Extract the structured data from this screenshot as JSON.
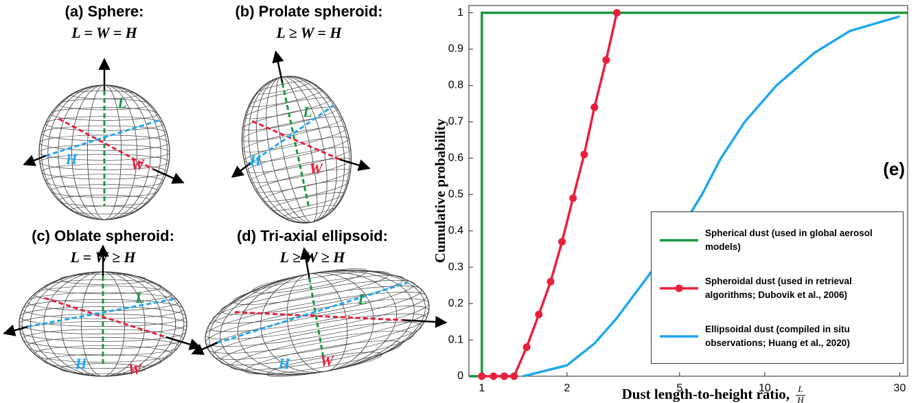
{
  "diagrams": [
    {
      "title": "(a) Sphere:",
      "formula": "L = W = H",
      "axes": [
        "L",
        "W",
        "H"
      ]
    },
    {
      "title": "(b) Prolate spheroid:",
      "formula": "L ≥ W = H",
      "axes": [
        "L",
        "W",
        "H"
      ]
    },
    {
      "title": "(c) Oblate spheroid:",
      "formula": "L = W ≥ H",
      "axes": [
        "L",
        "W",
        "H"
      ]
    },
    {
      "title": "(d) Tri-axial ellipsoid:",
      "formula": "L ≥ W ≥ H",
      "axes": [
        "L",
        "W",
        "H"
      ]
    }
  ],
  "chart_data": {
    "type": "line",
    "panel_label": "(e)",
    "x_label": "Dust length-to-height ratio,",
    "x_label_fraction": {
      "numerator": "L",
      "denominator": "H"
    },
    "y_label": "Cumulative probability",
    "x_scale": "log",
    "xlim": [
      0.9,
      32
    ],
    "xticks": [
      1,
      2,
      5,
      10,
      30
    ],
    "ylim": [
      0,
      1.02
    ],
    "yticks": [
      0,
      0.1,
      0.2,
      0.3,
      0.4,
      0.5,
      0.6,
      0.7,
      0.8,
      0.9,
      1
    ],
    "grid": false,
    "legend": "lower right",
    "series": [
      {
        "name": "Spherical dust (used in global aerosol models)",
        "color": "#1a9641",
        "x": [
          0.9,
          1,
          1,
          32
        ],
        "values": [
          0,
          0,
          1,
          1
        ]
      },
      {
        "name": "Spheroidal dust (used in retrieval algorithms; Dubovik et al., 2006)",
        "color": "#e8203c",
        "marker": "circle",
        "x": [
          1,
          1.1,
          1.2,
          1.3,
          1.44,
          1.59,
          1.75,
          1.92,
          2.1,
          2.3,
          2.5,
          2.75,
          3
        ],
        "values": [
          0,
          0,
          0,
          0,
          0.08,
          0.17,
          0.26,
          0.37,
          0.49,
          0.61,
          0.74,
          0.87,
          1
        ]
      },
      {
        "name": "Ellipsoidal dust (compiled in situ observations; Huang et al., 2020)",
        "color": "#1ea7f0",
        "x": [
          1.4,
          2,
          2.5,
          3,
          3.5,
          4,
          5,
          6,
          7,
          8.5,
          11,
          15,
          20,
          30
        ],
        "values": [
          0,
          0.03,
          0.09,
          0.16,
          0.23,
          0.29,
          0.4,
          0.5,
          0.6,
          0.7,
          0.8,
          0.89,
          0.95,
          0.99
        ]
      }
    ]
  }
}
